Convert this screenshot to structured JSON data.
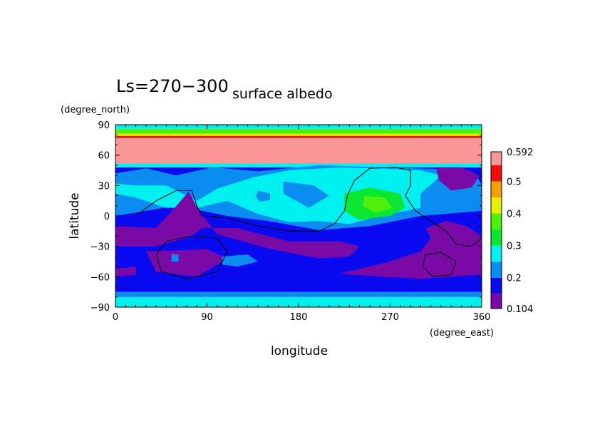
{
  "chart_data": {
    "type": "heatmap",
    "title_left": "Ls=270−300",
    "title_right": "surface albedo",
    "ylabel": "latitude",
    "xlabel": "longitude",
    "yunit": "(degree_north)",
    "xunit": "(degree_east)",
    "xlim": [
      0,
      360
    ],
    "ylim": [
      -90,
      90
    ],
    "xticks": [
      {
        "value": 0,
        "label": "0"
      },
      {
        "value": 90,
        "label": "90"
      },
      {
        "value": 180,
        "label": "180"
      },
      {
        "value": 270,
        "label": "270"
      },
      {
        "value": 360,
        "label": "360"
      }
    ],
    "yticks": [
      {
        "value": 90,
        "label": "90"
      },
      {
        "value": 60,
        "label": "60"
      },
      {
        "value": 30,
        "label": "30"
      },
      {
        "value": 0,
        "label": "0"
      },
      {
        "value": -30,
        "label": "−30"
      },
      {
        "value": -60,
        "label": "−60"
      },
      {
        "value": -90,
        "label": "−90"
      }
    ],
    "colorbar": {
      "min": 0.104,
      "max": 0.592,
      "labels": [
        {
          "value": 0.592,
          "label": "0.592"
        },
        {
          "value": 0.5,
          "label": "0.5"
        },
        {
          "value": 0.4,
          "label": "0.4"
        },
        {
          "value": 0.3,
          "label": "0.3"
        },
        {
          "value": 0.2,
          "label": "0.2"
        },
        {
          "value": 0.104,
          "label": "0.104"
        }
      ],
      "levels": [
        {
          "from": 0.104,
          "to": 0.15,
          "color": "#7a0aa6"
        },
        {
          "from": 0.15,
          "to": 0.2,
          "color": "#0a0af0"
        },
        {
          "from": 0.2,
          "to": 0.25,
          "color": "#0a8cf0"
        },
        {
          "from": 0.25,
          "to": 0.3,
          "color": "#00f0f0"
        },
        {
          "from": 0.3,
          "to": 0.35,
          "color": "#0ae632"
        },
        {
          "from": 0.35,
          "to": 0.4,
          "color": "#50f00a"
        },
        {
          "from": 0.4,
          "to": 0.45,
          "color": "#e6f000"
        },
        {
          "from": 0.45,
          "to": 0.5,
          "color": "#f0a000"
        },
        {
          "from": 0.5,
          "to": 0.55,
          "color": "#f00a0a"
        },
        {
          "from": 0.55,
          "to": 0.592,
          "color": "#fa9696"
        }
      ]
    },
    "bands": [
      {
        "lat_from": -90,
        "lat_to": -80,
        "level": 3
      },
      {
        "lat_from": -80,
        "lat_to": -75,
        "level": 2
      },
      {
        "lat_from": -75,
        "lat_to": 48,
        "level": 1
      },
      {
        "lat_from": 48,
        "lat_to": 52,
        "level": 3
      },
      {
        "lat_from": 52,
        "lat_to": 77,
        "level": 9
      },
      {
        "lat_from": 77,
        "lat_to": 79,
        "level": 8
      },
      {
        "lat_from": 79,
        "lat_to": 81,
        "level": 6
      },
      {
        "lat_from": 81,
        "lat_to": 86,
        "level": 5
      },
      {
        "lat_from": 86,
        "lat_to": 90,
        "level": 3
      }
    ],
    "regions": [
      {
        "level": 2,
        "points": [
          [
            0,
            42
          ],
          [
            30,
            47
          ],
          [
            60,
            40
          ],
          [
            95,
            48
          ],
          [
            140,
            44
          ],
          [
            200,
            50
          ],
          [
            260,
            48
          ],
          [
            330,
            46
          ],
          [
            355,
            40
          ],
          [
            360,
            30
          ],
          [
            360,
            5
          ],
          [
            300,
            0
          ],
          [
            250,
            -10
          ],
          [
            200,
            -14
          ],
          [
            150,
            -5
          ],
          [
            110,
            0
          ],
          [
            60,
            10
          ],
          [
            30,
            5
          ],
          [
            0,
            0
          ]
        ]
      },
      {
        "level": 3,
        "points": [
          [
            0,
            32
          ],
          [
            20,
            30
          ],
          [
            50,
            30
          ],
          [
            80,
            15
          ],
          [
            100,
            27
          ],
          [
            135,
            38
          ],
          [
            170,
            45
          ],
          [
            220,
            48
          ],
          [
            260,
            47
          ],
          [
            300,
            45
          ],
          [
            320,
            40
          ],
          [
            300,
            22
          ],
          [
            300,
            8
          ],
          [
            260,
            0
          ],
          [
            230,
            -8
          ],
          [
            200,
            -5
          ],
          [
            170,
            -6
          ],
          [
            140,
            2
          ],
          [
            110,
            15
          ],
          [
            80,
            8
          ],
          [
            50,
            8
          ],
          [
            20,
            18
          ],
          [
            0,
            22
          ]
        ]
      },
      {
        "level": 2,
        "points": [
          [
            165,
            34
          ],
          [
            195,
            30
          ],
          [
            210,
            20
          ],
          [
            190,
            8
          ],
          [
            165,
            22
          ]
        ]
      },
      {
        "level": 2,
        "points": [
          [
            140,
            25
          ],
          [
            152,
            22
          ],
          [
            152,
            16
          ],
          [
            142,
            14
          ],
          [
            138,
            19
          ]
        ]
      },
      {
        "level": 4,
        "points": [
          [
            225,
            22
          ],
          [
            250,
            28
          ],
          [
            280,
            22
          ],
          [
            285,
            8
          ],
          [
            270,
            0
          ],
          [
            240,
            -4
          ],
          [
            225,
            5
          ]
        ]
      },
      {
        "level": 5,
        "points": [
          [
            245,
            20
          ],
          [
            265,
            18
          ],
          [
            272,
            8
          ],
          [
            255,
            3
          ],
          [
            243,
            10
          ]
        ]
      },
      {
        "level": 0,
        "points": [
          [
            0,
            -10
          ],
          [
            40,
            -12
          ],
          [
            60,
            10
          ],
          [
            72,
            24
          ],
          [
            82,
            5
          ],
          [
            100,
            -18
          ],
          [
            150,
            -32
          ],
          [
            200,
            -42
          ],
          [
            230,
            -40
          ],
          [
            240,
            -30
          ],
          [
            220,
            -25
          ],
          [
            170,
            -25
          ],
          [
            120,
            -12
          ],
          [
            85,
            -12
          ],
          [
            75,
            -20
          ],
          [
            40,
            -30
          ],
          [
            0,
            -30
          ]
        ]
      },
      {
        "level": 0,
        "points": [
          [
            30,
            -35
          ],
          [
            90,
            -33
          ],
          [
            110,
            -42
          ],
          [
            80,
            -60
          ],
          [
            40,
            -55
          ]
        ]
      },
      {
        "level": 0,
        "points": [
          [
            0,
            -52
          ],
          [
            20,
            -50
          ],
          [
            20,
            -58
          ],
          [
            0,
            -60
          ]
        ]
      },
      {
        "level": 0,
        "points": [
          [
            220,
            -57
          ],
          [
            270,
            -45
          ],
          [
            300,
            -35
          ],
          [
            310,
            -22
          ],
          [
            305,
            -12
          ],
          [
            325,
            -5
          ],
          [
            345,
            -10
          ],
          [
            360,
            -20
          ],
          [
            360,
            -58
          ],
          [
            330,
            -60
          ],
          [
            300,
            -62
          ],
          [
            260,
            -60
          ]
        ]
      },
      {
        "level": 0,
        "points": [
          [
            315,
            48
          ],
          [
            340,
            48
          ],
          [
            358,
            40
          ],
          [
            350,
            28
          ],
          [
            330,
            25
          ],
          [
            318,
            35
          ]
        ]
      },
      {
        "level": 2,
        "points": [
          [
            105,
            -40
          ],
          [
            130,
            -38
          ],
          [
            140,
            -45
          ],
          [
            120,
            -50
          ],
          [
            105,
            -48
          ]
        ]
      },
      {
        "level": 2,
        "points": [
          [
            55,
            -38
          ],
          [
            62,
            -38
          ],
          [
            62,
            -45
          ],
          [
            55,
            -45
          ]
        ]
      }
    ],
    "contours": [
      {
        "points": [
          [
            20,
            0
          ],
          [
            40,
            15
          ],
          [
            60,
            25
          ],
          [
            75,
            25
          ],
          [
            80,
            10
          ],
          [
            85,
            0
          ],
          [
            110,
            -2
          ],
          [
            140,
            -10
          ],
          [
            170,
            -15
          ],
          [
            200,
            -15
          ],
          [
            215,
            -8
          ],
          [
            225,
            5
          ],
          [
            228,
            20
          ],
          [
            235,
            35
          ],
          [
            250,
            47
          ],
          [
            275,
            48
          ],
          [
            290,
            45
          ],
          [
            290,
            30
          ],
          [
            285,
            20
          ],
          [
            295,
            5
          ],
          [
            310,
            -5
          ],
          [
            325,
            -15
          ],
          [
            335,
            -28
          ],
          [
            350,
            -30
          ],
          [
            360,
            -22
          ]
        ]
      },
      {
        "points": [
          [
            50,
            -25
          ],
          [
            75,
            -20
          ],
          [
            100,
            -22
          ],
          [
            110,
            -35
          ],
          [
            100,
            -55
          ],
          [
            70,
            -62
          ],
          [
            45,
            -55
          ],
          [
            40,
            -38
          ],
          [
            50,
            -25
          ]
        ]
      },
      {
        "points": [
          [
            305,
            -38
          ],
          [
            320,
            -36
          ],
          [
            335,
            -45
          ],
          [
            330,
            -58
          ],
          [
            312,
            -60
          ],
          [
            302,
            -50
          ],
          [
            305,
            -38
          ]
        ]
      }
    ]
  }
}
